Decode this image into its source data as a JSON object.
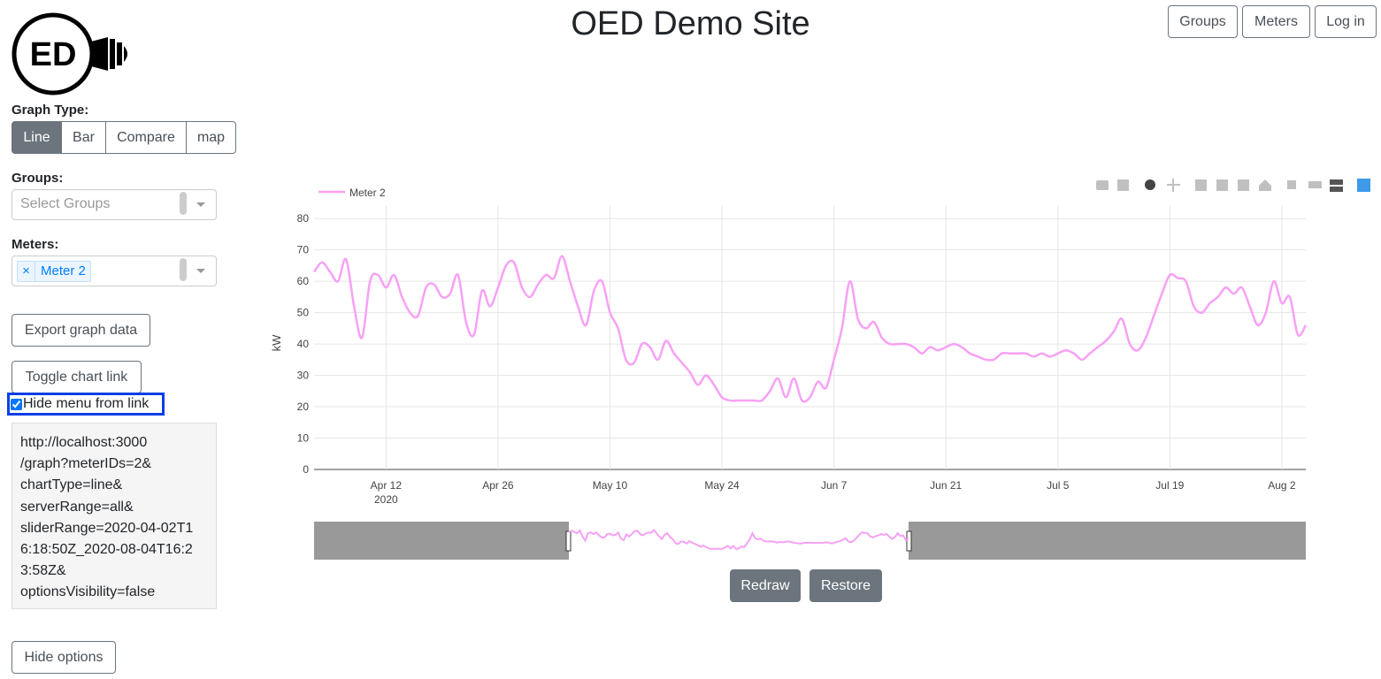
{
  "header": {
    "title": "OED Demo Site",
    "nav": [
      "Groups",
      "Meters",
      "Log in"
    ]
  },
  "logo": "ED",
  "sidebar": {
    "graph_type_label": "Graph Type:",
    "graph_types": [
      "Line",
      "Bar",
      "Compare",
      "map"
    ],
    "groups_label": "Groups:",
    "groups_placeholder": "Select Groups",
    "meters_label": "Meters:",
    "meter_remove": "×",
    "selected_meter": "Meter 2",
    "export": "Export graph data",
    "toggle_link": "Toggle chart link",
    "hide_menu": "Hide menu from link",
    "link_lines": [
      "http://localhost:3000",
      "/graph?meterIDs=2&",
      "chartType=line&",
      "serverRange=all&",
      "sliderRange=2020-04-02T1",
      "6:18:50Z_2020-08-04T16:2",
      "3:58Z&",
      "optionsVisibility=false"
    ],
    "hide_options": "Hide options"
  },
  "chart_data": {
    "type": "line",
    "y_label": "kW",
    "xlim": [
      "2020-04-03",
      "2020-08-05"
    ],
    "xticks": [
      {
        "value": "2020-04-12",
        "label": "Apr 12"
      },
      {
        "value": "2020-04-26",
        "label": "Apr 26"
      },
      {
        "value": "2020-05-10",
        "label": "May 10"
      },
      {
        "value": "2020-05-24",
        "label": "May 24"
      },
      {
        "value": "2020-06-07",
        "label": "Jun 7"
      },
      {
        "value": "2020-06-21",
        "label": "Jun 21"
      },
      {
        "value": "2020-07-05",
        "label": "Jul 5"
      },
      {
        "value": "2020-07-19",
        "label": "Jul 19"
      },
      {
        "value": "2020-08-02",
        "label": "Aug 2"
      }
    ],
    "xtick_year": "2020",
    "ylim": [
      0,
      84
    ],
    "yticks": [
      0,
      10,
      20,
      30,
      40,
      50,
      60,
      70,
      80
    ],
    "grid": true,
    "x": [
      "2020-04-03",
      "2020-04-04",
      "2020-04-05",
      "2020-04-06",
      "2020-04-07",
      "2020-04-08",
      "2020-04-09",
      "2020-04-10",
      "2020-04-11",
      "2020-04-12",
      "2020-04-13",
      "2020-04-14",
      "2020-04-15",
      "2020-04-16",
      "2020-04-17",
      "2020-04-18",
      "2020-04-19",
      "2020-04-20",
      "2020-04-21",
      "2020-04-22",
      "2020-04-23",
      "2020-04-24",
      "2020-04-25",
      "2020-04-26",
      "2020-04-27",
      "2020-04-28",
      "2020-04-29",
      "2020-04-30",
      "2020-05-01",
      "2020-05-02",
      "2020-05-03",
      "2020-05-04",
      "2020-05-05",
      "2020-05-06",
      "2020-05-07",
      "2020-05-08",
      "2020-05-09",
      "2020-05-10",
      "2020-05-11",
      "2020-05-12",
      "2020-05-13",
      "2020-05-14",
      "2020-05-15",
      "2020-05-16",
      "2020-05-17",
      "2020-05-18",
      "2020-05-19",
      "2020-05-20",
      "2020-05-21",
      "2020-05-22",
      "2020-05-23",
      "2020-05-24",
      "2020-05-25",
      "2020-05-26",
      "2020-05-27",
      "2020-05-28",
      "2020-05-29",
      "2020-05-30",
      "2020-05-31",
      "2020-06-01",
      "2020-06-02",
      "2020-06-03",
      "2020-06-04",
      "2020-06-05",
      "2020-06-06",
      "2020-06-07",
      "2020-06-08",
      "2020-06-09",
      "2020-06-10",
      "2020-06-11",
      "2020-06-12",
      "2020-06-13",
      "2020-06-14",
      "2020-06-15",
      "2020-06-16",
      "2020-06-17",
      "2020-06-18",
      "2020-06-19",
      "2020-06-20",
      "2020-06-21",
      "2020-06-22",
      "2020-06-23",
      "2020-06-24",
      "2020-06-25",
      "2020-06-26",
      "2020-06-27",
      "2020-06-28",
      "2020-06-29",
      "2020-06-30",
      "2020-07-01",
      "2020-07-02",
      "2020-07-03",
      "2020-07-04",
      "2020-07-05",
      "2020-07-06",
      "2020-07-07",
      "2020-07-08",
      "2020-07-09",
      "2020-07-10",
      "2020-07-11",
      "2020-07-12",
      "2020-07-13",
      "2020-07-14",
      "2020-07-15",
      "2020-07-16",
      "2020-07-17",
      "2020-07-18",
      "2020-07-19",
      "2020-07-20",
      "2020-07-21",
      "2020-07-22",
      "2020-07-23",
      "2020-07-24",
      "2020-07-25",
      "2020-07-26",
      "2020-07-27",
      "2020-07-28",
      "2020-07-29",
      "2020-07-30",
      "2020-07-31",
      "2020-08-01",
      "2020-08-02",
      "2020-08-03",
      "2020-08-04",
      "2020-08-05"
    ],
    "series": [
      {
        "name": "Meter 2",
        "color": "#f7a1f5",
        "values": [
          63,
          66,
          63,
          60,
          67,
          52,
          42,
          60,
          62,
          58,
          62,
          55,
          50,
          49,
          58,
          59,
          55,
          56,
          62,
          47,
          43,
          57,
          52,
          58,
          65,
          66,
          58,
          55,
          59,
          62,
          61,
          68,
          60,
          52,
          46,
          57,
          60,
          50,
          45,
          35,
          34,
          40,
          39,
          35,
          41,
          37,
          34,
          31,
          27,
          30,
          27,
          23,
          22,
          22,
          22,
          22,
          22,
          25,
          29,
          23,
          29,
          22,
          23,
          28,
          26,
          35,
          45,
          60,
          48,
          45,
          47,
          42,
          40,
          40,
          40,
          39,
          37,
          39,
          38,
          39,
          40,
          39,
          37,
          36,
          35,
          35,
          37,
          37,
          37,
          37,
          36,
          37,
          36,
          37,
          38,
          37,
          35,
          37,
          39,
          41,
          44,
          48,
          40,
          38,
          42,
          49,
          56,
          62,
          61,
          60,
          52,
          50,
          53,
          55,
          58,
          56,
          58,
          52,
          46,
          50,
          60,
          53,
          55,
          43,
          46
        ]
      }
    ],
    "buttons": [
      "Redraw",
      "Restore"
    ]
  }
}
